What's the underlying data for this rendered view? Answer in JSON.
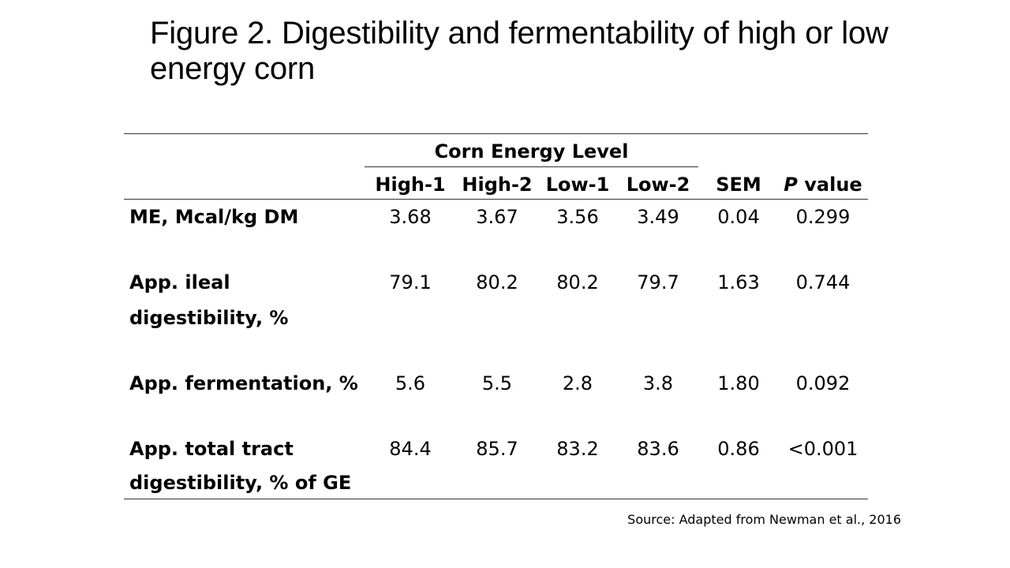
{
  "title": "Figure 2. Digestibility and fermentability of high or low energy corn",
  "table": {
    "group_header": "Corn Energy Level",
    "columns": [
      "High-1",
      "High-2",
      "Low-1",
      "Low-2",
      "SEM"
    ],
    "p_header_italic": "P",
    "p_header_rest": " value",
    "rows": [
      {
        "label": [
          "ME, Mcal/kg DM"
        ],
        "values": [
          "3.68",
          "3.67",
          "3.56",
          "3.49",
          "0.04",
          "0.299"
        ]
      },
      {
        "label": [
          "App. ileal",
          "digestibility, %"
        ],
        "values": [
          "79.1",
          "80.2",
          "80.2",
          "79.7",
          "1.63",
          "0.744"
        ]
      },
      {
        "label": [
          "App. fermentation, %"
        ],
        "values": [
          "5.6",
          "5.5",
          "2.8",
          "3.8",
          "1.80",
          "0.092"
        ]
      },
      {
        "label": [
          "App. total tract",
          "digestibility, % of GE"
        ],
        "values": [
          "84.4",
          "85.7",
          "83.2",
          "83.6",
          "0.86",
          "<0.001"
        ]
      }
    ]
  },
  "source": "Source: Adapted from Newman et al., 2016"
}
